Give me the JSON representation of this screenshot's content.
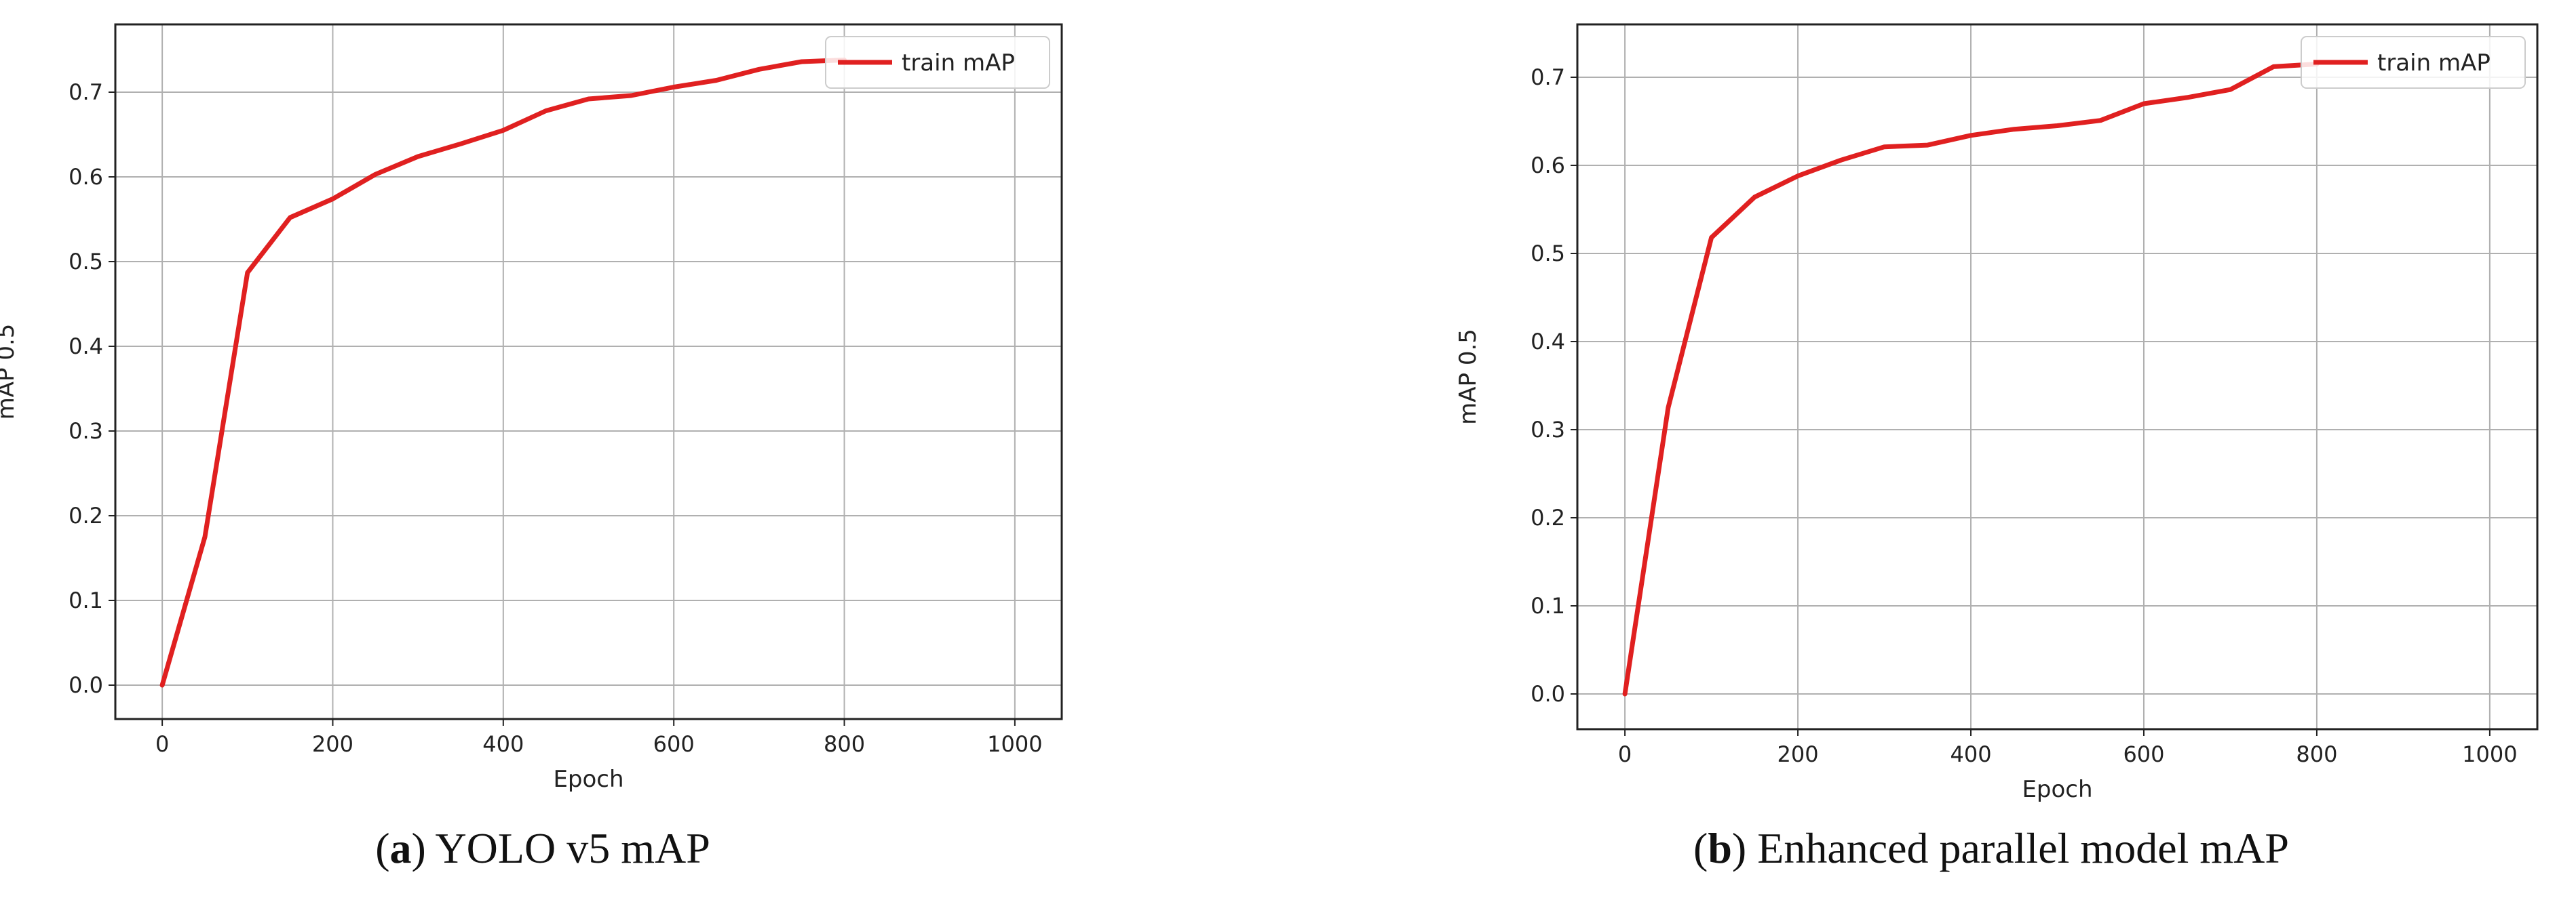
{
  "chart_data": [
    {
      "type": "line",
      "caption_letter": "a",
      "caption_text": "YOLO v5 mAP",
      "xlabel": "Epoch",
      "ylabel": "mAP 0.5",
      "xlim": [
        -55,
        1055
      ],
      "ylim": [
        -0.04,
        0.78
      ],
      "xticks": [
        0,
        200,
        400,
        600,
        800,
        1000
      ],
      "yticks": [
        0.0,
        0.1,
        0.2,
        0.3,
        0.4,
        0.5,
        0.6,
        0.7
      ],
      "grid": true,
      "legend_position": "top-right",
      "color": "#e02020",
      "series": [
        {
          "name": "train mAP",
          "x": [
            0,
            50,
            100,
            150,
            200,
            250,
            300,
            350,
            400,
            450,
            500,
            550,
            600,
            650,
            700,
            750,
            800
          ],
          "y": [
            0.0,
            0.175,
            0.487,
            0.552,
            0.574,
            0.603,
            0.624,
            0.639,
            0.655,
            0.678,
            0.692,
            0.696,
            0.706,
            0.714,
            0.727,
            0.736,
            0.738
          ]
        }
      ]
    },
    {
      "type": "line",
      "caption_letter": "b",
      "caption_text": "Enhanced parallel model mAP",
      "xlabel": "Epoch",
      "ylabel": "mAP 0.5",
      "xlim": [
        -55,
        1055
      ],
      "ylim": [
        -0.04,
        0.76
      ],
      "xticks": [
        0,
        200,
        400,
        600,
        800,
        1000
      ],
      "yticks": [
        0.0,
        0.1,
        0.2,
        0.3,
        0.4,
        0.5,
        0.6,
        0.7
      ],
      "grid": true,
      "legend_position": "top-right",
      "color": "#e02020",
      "series": [
        {
          "name": "train mAP",
          "x": [
            0,
            50,
            100,
            150,
            200,
            250,
            300,
            350,
            400,
            450,
            500,
            550,
            600,
            650,
            700,
            750,
            800
          ],
          "y": [
            0.0,
            0.325,
            0.518,
            0.564,
            0.588,
            0.606,
            0.621,
            0.623,
            0.634,
            0.641,
            0.645,
            0.651,
            0.67,
            0.677,
            0.686,
            0.712,
            0.715
          ]
        }
      ]
    }
  ]
}
